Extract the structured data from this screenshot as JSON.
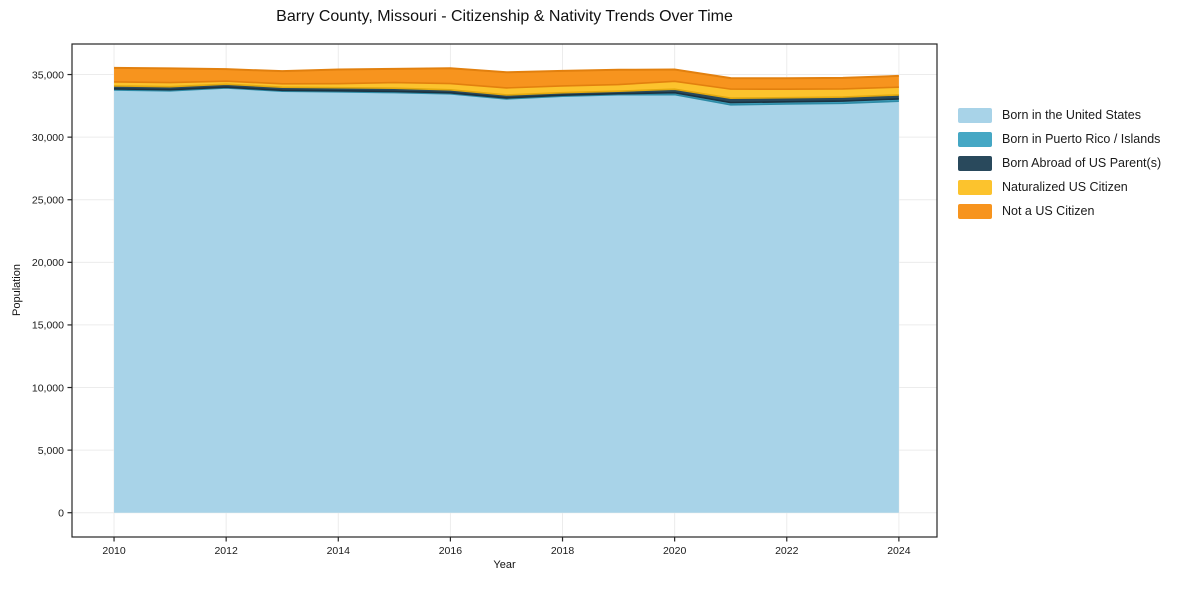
{
  "title": "Barry County, Missouri - Citizenship & Nativity Trends Over Time",
  "chart_data": {
    "type": "area",
    "stacked": true,
    "title": "Barry County, Missouri - Citizenship & Nativity Trends Over Time",
    "xlabel": "Year",
    "ylabel": "Population",
    "grid": true,
    "legend_position": "right",
    "x": [
      2010,
      2011,
      2012,
      2013,
      2014,
      2015,
      2016,
      2017,
      2018,
      2019,
      2020,
      2021,
      2022,
      2023,
      2024
    ],
    "series": [
      {
        "name": "Born in the United States",
        "color": "#A8D3E8",
        "edge": "#79B8D6",
        "values": [
          33770,
          33700,
          33930,
          33670,
          33620,
          33560,
          33460,
          33050,
          33270,
          33390,
          33400,
          32580,
          32650,
          32700,
          32870
        ]
      },
      {
        "name": "Born in Puerto Rico / Islands",
        "color": "#45A7C4",
        "edge": "#2E8BA6",
        "values": [
          80,
          90,
          60,
          70,
          80,
          90,
          80,
          80,
          80,
          80,
          150,
          185,
          170,
          180,
          185
        ]
      },
      {
        "name": "Born Abroad of US Parent(s)",
        "color": "#29495C",
        "edge": "#1B3240",
        "values": [
          240,
          240,
          240,
          250,
          250,
          260,
          240,
          240,
          200,
          200,
          280,
          350,
          330,
          320,
          320
        ]
      },
      {
        "name": "Naturalized US Citizen",
        "color": "#FCC32D",
        "edge": "#E3A90F",
        "values": [
          320,
          330,
          240,
          270,
          320,
          450,
          500,
          560,
          540,
          530,
          630,
          720,
          680,
          650,
          615
        ]
      },
      {
        "name": "Not a US Citizen",
        "color": "#F7941E",
        "edge": "#E2800E",
        "values": [
          1120,
          1130,
          960,
          1010,
          1130,
          1090,
          1220,
          1250,
          1200,
          1180,
          940,
          880,
          870,
          880,
          900
        ]
      }
    ],
    "totals": [
      35530,
      35490,
      35430,
      35270,
      35400,
      35450,
      35500,
      35180,
      35290,
      35380,
      35400,
      34715,
      34700,
      34730,
      34890
    ],
    "xticks": {
      "values": [
        2010,
        2012,
        2014,
        2016,
        2018,
        2020,
        2022,
        2024
      ],
      "labels": [
        "2010",
        "2012",
        "2014",
        "2016",
        "2018",
        "2020",
        "2022",
        "2024"
      ]
    },
    "yticks": {
      "values": [
        0,
        5000,
        10000,
        15000,
        20000,
        25000,
        30000,
        35000
      ],
      "labels": [
        "0",
        "5,000",
        "10,000",
        "15,000",
        "20,000",
        "25,000",
        "30,000",
        "35,000"
      ]
    },
    "xlim": [
      2009.25,
      2024.68
    ],
    "ylim": [
      -1940,
      37440
    ],
    "grid_color": "#ececec",
    "spine_color": "#262626"
  }
}
